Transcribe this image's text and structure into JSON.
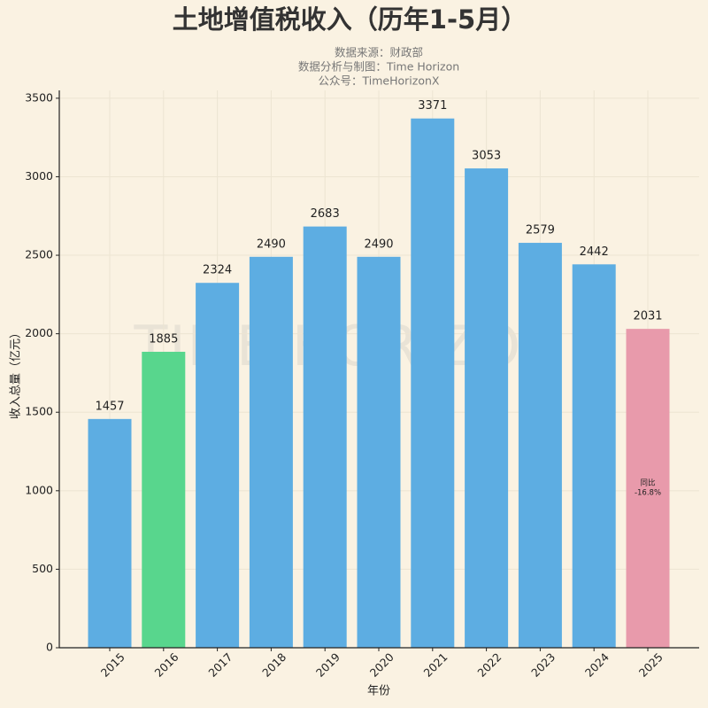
{
  "chart_data": {
    "type": "bar",
    "title": "土地增值税收入（历年1-5月）",
    "subtitle": [
      "数据来源：财政部",
      "数据分析与制图：Time Horizon",
      "公众号：TimeHorizonX"
    ],
    "watermark": "TIME HORIZON",
    "x_label": "年份",
    "y_label": "收入总量（亿元）",
    "categories": [
      "2015",
      "2016",
      "2017",
      "2018",
      "2019",
      "2020",
      "2021",
      "2022",
      "2023",
      "2024",
      "2025"
    ],
    "values": [
      1457,
      1885,
      2324,
      2490,
      2683,
      2490,
      3371,
      3053,
      2579,
      2442,
      2031
    ],
    "colors": [
      "#5dade2",
      "#58d68d",
      "#5dade2",
      "#5dade2",
      "#5dade2",
      "#5dade2",
      "#5dade2",
      "#5dade2",
      "#5dade2",
      "#5dade2",
      "#e89aab"
    ],
    "annotation": {
      "category": "2025",
      "lines": [
        "同比",
        "-16.8%"
      ]
    },
    "ylim": [
      0,
      3550
    ],
    "yticks": [
      0,
      500,
      1000,
      1500,
      2000,
      2500,
      3000,
      3500
    ],
    "grid": true
  }
}
